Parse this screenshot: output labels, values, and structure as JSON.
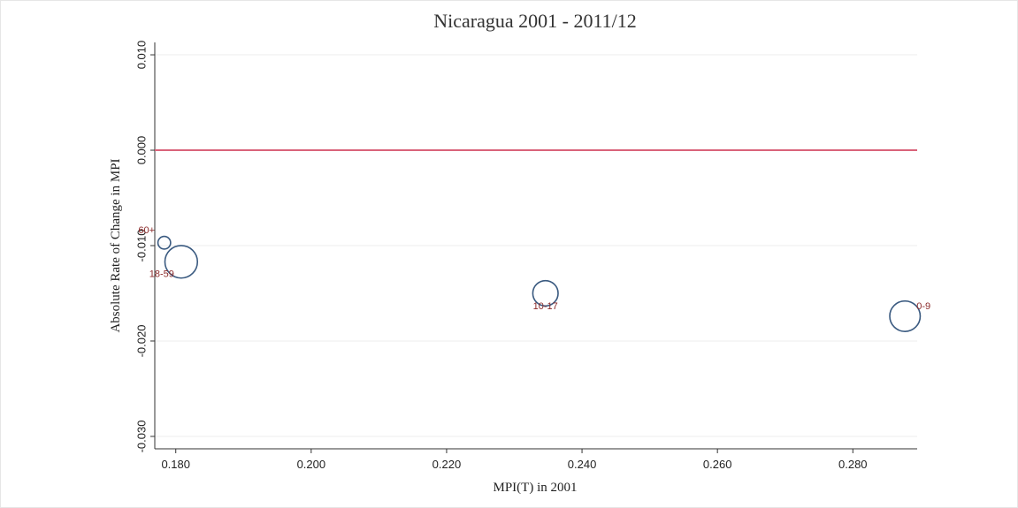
{
  "chart_data": {
    "type": "scatter",
    "title": "Nicaragua 2001 - 2011/12",
    "xlabel": "MPI(T) in 2001",
    "ylabel": "Absolute Rate of Change in MPI",
    "series": [
      {
        "labels": [
          "60+",
          "18-59",
          "10-17",
          "0-9"
        ],
        "x": [
          0.1783,
          0.1808,
          0.2346,
          0.2877
        ],
        "y": [
          -0.0097,
          -0.0117,
          -0.015,
          -0.0174
        ],
        "size": [
          5,
          33,
          20,
          29
        ],
        "color": "#3a5a80",
        "label_color": "#8b2a2a"
      }
    ],
    "reference_line": {
      "value": 0,
      "color": "#d9637a"
    },
    "xlim": [
      0.1769,
      0.2895
    ],
    "ylim": [
      -0.0313,
      0.0113
    ],
    "xticks": [
      {
        "value": 0.18,
        "label": "0.180"
      },
      {
        "value": 0.2,
        "label": "0.200"
      },
      {
        "value": 0.22,
        "label": "0.220"
      },
      {
        "value": 0.24,
        "label": "0.240"
      },
      {
        "value": 0.26,
        "label": "0.260"
      },
      {
        "value": 0.28,
        "label": "0.280"
      }
    ],
    "yticks": [
      {
        "value": 0.01,
        "label": "0.010"
      },
      {
        "value": 0,
        "label": "0.000"
      },
      {
        "value": -0.01,
        "label": "-0.010"
      },
      {
        "value": -0.02,
        "label": "-0.020"
      },
      {
        "value": -0.03,
        "label": "-0.030"
      }
    ],
    "grid": true
  }
}
